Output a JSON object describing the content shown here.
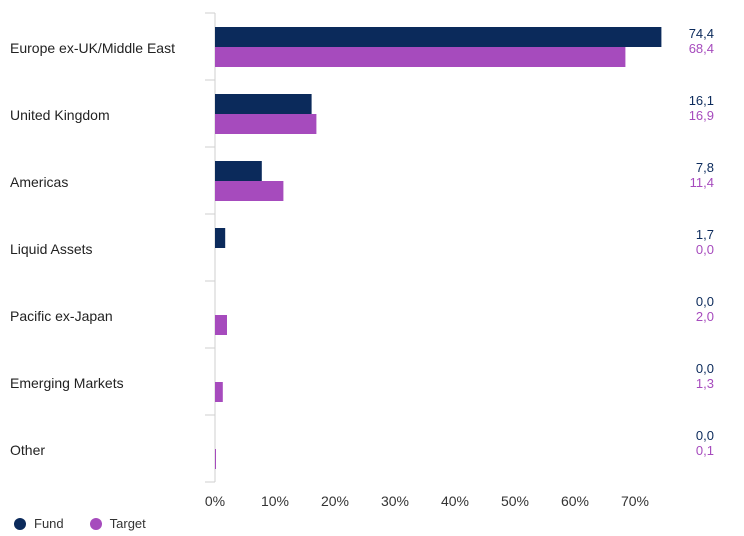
{
  "chart_data": {
    "type": "bar",
    "orientation": "horizontal",
    "categories": [
      "Europe ex-UK/Middle East",
      "United Kingdom",
      "Americas",
      "Liquid Assets",
      "Pacific ex-Japan",
      "Emerging Markets",
      "Other"
    ],
    "series": [
      {
        "name": "Fund",
        "color": "#0b2a5b",
        "values": [
          74.4,
          16.1,
          7.8,
          1.7,
          0.0,
          0.0,
          0.0
        ],
        "labels": [
          "74,4",
          "16,1",
          "7,8",
          "1,7",
          "0,0",
          "0,0",
          "0,0"
        ]
      },
      {
        "name": "Target",
        "color": "#a64bbd",
        "values": [
          68.4,
          16.9,
          11.4,
          0.0,
          2.0,
          1.3,
          0.1
        ],
        "labels": [
          "68,4",
          "16,9",
          "11,4",
          "0,0",
          "2,0",
          "1,3",
          "0,1"
        ]
      }
    ],
    "xlim": [
      0,
      80
    ],
    "xticks": [
      0,
      10,
      20,
      30,
      40,
      50,
      60,
      70
    ],
    "xtick_labels": [
      "0%",
      "10%",
      "20%",
      "30%",
      "40%",
      "50%",
      "60%",
      "70%"
    ],
    "legend_position": "bottom-left",
    "grid": false
  }
}
